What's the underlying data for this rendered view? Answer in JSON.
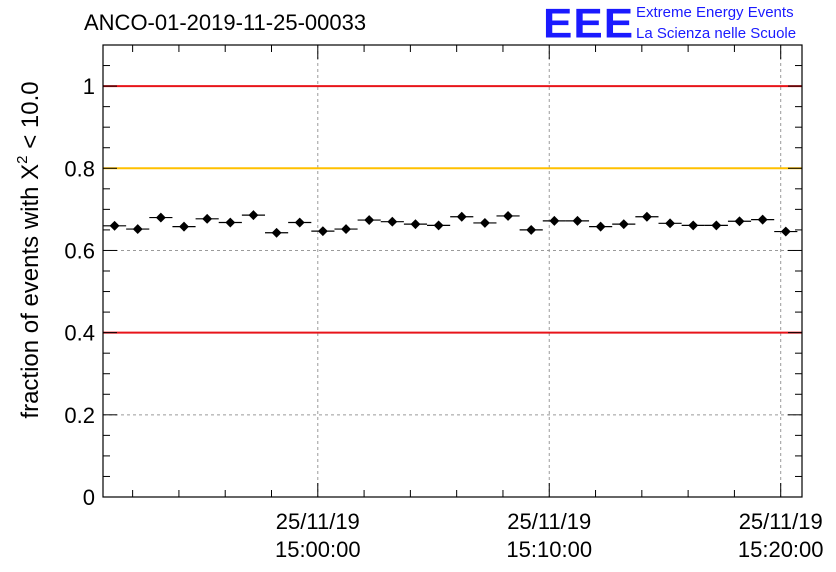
{
  "header": {
    "run_title": "ANCO-01-2019-11-25-00033",
    "logo_mark": "EEE",
    "logo_line1": "Extreme Energy Events",
    "logo_line2": "La Scienza nelle Scuole"
  },
  "colors": {
    "limit_red": "#e8141a",
    "limit_yellow": "#ffc000",
    "points": "#000000",
    "grid": "#9a9a9a"
  },
  "chart_data": {
    "type": "scatter",
    "title": "ANCO-01-2019-11-25-00033",
    "xlabel": "",
    "ylabel_prefix": "fraction of events with X",
    "ylabel_sup": "2",
    "ylabel_suffix": " < 10.0",
    "x_unit": "minutes after 25/11/19 14:50:43",
    "xlim": [
      0,
      30.2
    ],
    "ylim": [
      0,
      1.1
    ],
    "y_ticks": [
      0,
      0.2,
      0.4,
      0.6,
      0.8,
      1
    ],
    "y_tick_labels": [
      "0",
      "0.2",
      "0.4",
      "0.6",
      "0.8",
      "1"
    ],
    "x_ticks": [
      {
        "x": 9.28,
        "date": "25/11/19",
        "time": "15:00:00"
      },
      {
        "x": 19.28,
        "date": "25/11/19",
        "time": "15:10:00"
      },
      {
        "x": 29.28,
        "date": "25/11/19",
        "time": "15:20:00"
      }
    ],
    "grid": true,
    "bin_width_min": 1.0,
    "reference_lines": [
      {
        "y": 1.0,
        "color": "red"
      },
      {
        "y": 0.8,
        "color": "yellow"
      },
      {
        "y": 0.4,
        "color": "red"
      }
    ],
    "series": [
      {
        "name": "fraction",
        "x": [
          0.5,
          1.5,
          2.5,
          3.5,
          4.5,
          5.5,
          6.5,
          7.5,
          8.5,
          9.5,
          10.5,
          11.5,
          12.5,
          13.5,
          14.5,
          15.5,
          16.5,
          17.5,
          18.5,
          19.5,
          20.5,
          21.5,
          22.5,
          23.5,
          24.5,
          25.5,
          26.5,
          27.5,
          28.5,
          29.5
        ],
        "values": [
          0.66,
          0.652,
          0.68,
          0.658,
          0.677,
          0.668,
          0.686,
          0.643,
          0.668,
          0.647,
          0.652,
          0.674,
          0.67,
          0.664,
          0.661,
          0.682,
          0.667,
          0.684,
          0.65,
          0.672,
          0.672,
          0.658,
          0.664,
          0.682,
          0.666,
          0.661,
          0.661,
          0.671,
          0.675,
          0.646
        ],
        "error": 0.008
      }
    ]
  }
}
